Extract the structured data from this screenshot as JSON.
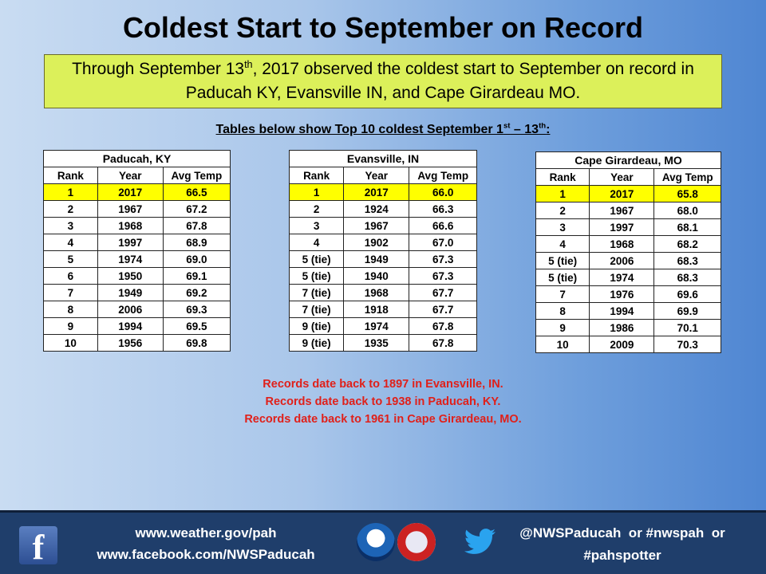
{
  "title": "Coldest Start to September on Record",
  "note": {
    "line1_pre": "Through September 13",
    "line1_sup": "th",
    "line1_post": ", 2017 observed the coldest start to September on record in",
    "line2": "Paducah KY, Evansville IN, and Cape Girardeau MO."
  },
  "subhead": {
    "pre": "Tables below show Top 10 coldest September 1",
    "sup1": "st",
    "mid": " – 13",
    "sup2": "th",
    "post": ":"
  },
  "tables": [
    {
      "city": "Paducah, KY",
      "headers": [
        "Rank",
        "Year",
        "Avg Temp"
      ],
      "rows": [
        [
          "1",
          "2017",
          "66.5"
        ],
        [
          "2",
          "1967",
          "67.2"
        ],
        [
          "3",
          "1968",
          "67.8"
        ],
        [
          "4",
          "1997",
          "68.9"
        ],
        [
          "5",
          "1974",
          "69.0"
        ],
        [
          "6",
          "1950",
          "69.1"
        ],
        [
          "7",
          "1949",
          "69.2"
        ],
        [
          "8",
          "2006",
          "69.3"
        ],
        [
          "9",
          "1994",
          "69.5"
        ],
        [
          "10",
          "1956",
          "69.8"
        ]
      ]
    },
    {
      "city": "Evansville, IN",
      "headers": [
        "Rank",
        "Year",
        "Avg Temp"
      ],
      "rows": [
        [
          "1",
          "2017",
          "66.0"
        ],
        [
          "2",
          "1924",
          "66.3"
        ],
        [
          "3",
          "1967",
          "66.6"
        ],
        [
          "4",
          "1902",
          "67.0"
        ],
        [
          "5 (tie)",
          "1949",
          "67.3"
        ],
        [
          "5 (tie)",
          "1940",
          "67.3"
        ],
        [
          "7 (tie)",
          "1968",
          "67.7"
        ],
        [
          "7 (tie)",
          "1918",
          "67.7"
        ],
        [
          "9 (tie)",
          "1974",
          "67.8"
        ],
        [
          "9 (tie)",
          "1935",
          "67.8"
        ]
      ]
    },
    {
      "city": "Cape Girardeau, MO",
      "headers": [
        "Rank",
        "Year",
        "Avg Temp"
      ],
      "rows": [
        [
          "1",
          "2017",
          "65.8"
        ],
        [
          "2",
          "1967",
          "68.0"
        ],
        [
          "3",
          "1997",
          "68.1"
        ],
        [
          "4",
          "1968",
          "68.2"
        ],
        [
          "5 (tie)",
          "2006",
          "68.3"
        ],
        [
          "5 (tie)",
          "1974",
          "68.3"
        ],
        [
          "7",
          "1976",
          "69.6"
        ],
        [
          "8",
          "1994",
          "69.9"
        ],
        [
          "9",
          "1986",
          "70.1"
        ],
        [
          "10",
          "2009",
          "70.3"
        ]
      ]
    }
  ],
  "records": [
    "Records date back to 1897 in Evansville, IN.",
    "Records date back to 1938 in Paducah, KY.",
    "Records date back to 1961 in Cape Girardeau, MO."
  ],
  "footer": {
    "website": "www.weather.gov/pah",
    "facebook": "www.facebook.com/NWSPaducah",
    "social_line1": "@NWSPaducah  or #nwspah  or",
    "social_line2": "#pahspotter",
    "icons": [
      "facebook-icon",
      "noaa-logo",
      "nws-logo",
      "twitter-icon"
    ]
  },
  "colors": {
    "highlight": "#ffff00",
    "note_bg": "#dcf05a",
    "records_text": "#e0201a",
    "footer_bg": "#1f3e6b"
  }
}
